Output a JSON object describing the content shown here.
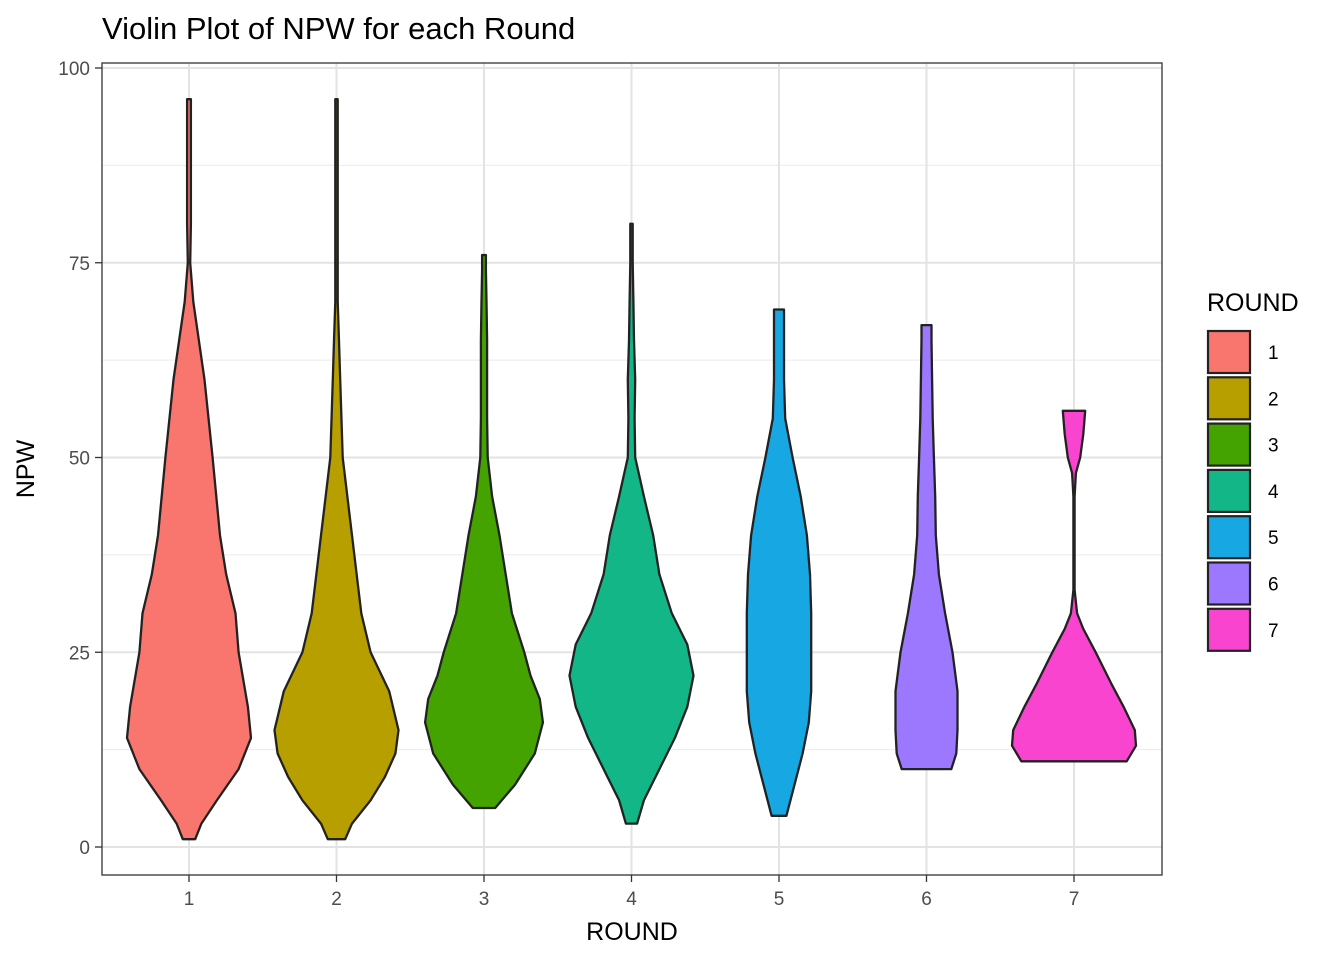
{
  "chart_data": {
    "type": "violin",
    "title": "Violin Plot of NPW for each Round",
    "xlabel": "ROUND",
    "ylabel": "NPW",
    "categories": [
      "1",
      "2",
      "3",
      "4",
      "5",
      "6",
      "7"
    ],
    "ylim": [
      0,
      100
    ],
    "yticks": [
      0,
      25,
      50,
      75,
      100
    ],
    "grid": true,
    "legend": {
      "title": "ROUND",
      "position": "right",
      "labels": [
        "1",
        "2",
        "3",
        "4",
        "5",
        "6",
        "7"
      ]
    },
    "series": [
      {
        "name": "1",
        "color": "#F8766D",
        "min": 1,
        "max": 96,
        "profile": [
          [
            1,
            0.1
          ],
          [
            3,
            0.2
          ],
          [
            6,
            0.45
          ],
          [
            10,
            0.8
          ],
          [
            14,
            1.0
          ],
          [
            18,
            0.95
          ],
          [
            25,
            0.8
          ],
          [
            30,
            0.75
          ],
          [
            35,
            0.6
          ],
          [
            40,
            0.5
          ],
          [
            50,
            0.38
          ],
          [
            60,
            0.25
          ],
          [
            70,
            0.07
          ],
          [
            75,
            0.02
          ],
          [
            80,
            0.03
          ],
          [
            85,
            0.03
          ],
          [
            96,
            0.03
          ]
        ]
      },
      {
        "name": "2",
        "color": "#B79F00",
        "min": 1,
        "max": 96,
        "profile": [
          [
            1,
            0.14
          ],
          [
            3,
            0.25
          ],
          [
            6,
            0.55
          ],
          [
            9,
            0.78
          ],
          [
            12,
            0.95
          ],
          [
            15,
            1.0
          ],
          [
            20,
            0.85
          ],
          [
            25,
            0.55
          ],
          [
            30,
            0.4
          ],
          [
            40,
            0.25
          ],
          [
            50,
            0.1
          ],
          [
            60,
            0.06
          ],
          [
            65,
            0.04
          ],
          [
            70,
            0.02
          ],
          [
            80,
            0.02
          ],
          [
            96,
            0.02
          ]
        ]
      },
      {
        "name": "3",
        "color": "#45A300",
        "min": 5,
        "max": 76,
        "profile": [
          [
            5,
            0.18
          ],
          [
            8,
            0.5
          ],
          [
            12,
            0.82
          ],
          [
            16,
            0.95
          ],
          [
            19,
            0.9
          ],
          [
            22,
            0.75
          ],
          [
            25,
            0.65
          ],
          [
            30,
            0.45
          ],
          [
            35,
            0.35
          ],
          [
            40,
            0.25
          ],
          [
            45,
            0.13
          ],
          [
            50,
            0.06
          ],
          [
            55,
            0.05
          ],
          [
            60,
            0.05
          ],
          [
            65,
            0.05
          ],
          [
            70,
            0.04
          ],
          [
            74,
            0.03
          ],
          [
            76,
            0.03
          ]
        ]
      },
      {
        "name": "4",
        "color": "#13B787",
        "min": 3,
        "max": 80,
        "profile": [
          [
            3,
            0.09
          ],
          [
            6,
            0.2
          ],
          [
            10,
            0.45
          ],
          [
            14,
            0.7
          ],
          [
            18,
            0.9
          ],
          [
            22,
            1.0
          ],
          [
            26,
            0.9
          ],
          [
            30,
            0.65
          ],
          [
            35,
            0.45
          ],
          [
            40,
            0.35
          ],
          [
            45,
            0.2
          ],
          [
            50,
            0.06
          ],
          [
            55,
            0.05
          ],
          [
            60,
            0.06
          ],
          [
            65,
            0.04
          ],
          [
            70,
            0.03
          ],
          [
            75,
            0.02
          ],
          [
            80,
            0.02
          ]
        ]
      },
      {
        "name": "5",
        "color": "#17A8E4",
        "min": 4,
        "max": 69,
        "profile": [
          [
            4,
            0.12
          ],
          [
            8,
            0.25
          ],
          [
            12,
            0.38
          ],
          [
            16,
            0.48
          ],
          [
            20,
            0.52
          ],
          [
            25,
            0.52
          ],
          [
            30,
            0.52
          ],
          [
            35,
            0.5
          ],
          [
            40,
            0.45
          ],
          [
            45,
            0.35
          ],
          [
            50,
            0.22
          ],
          [
            55,
            0.1
          ],
          [
            60,
            0.08
          ],
          [
            65,
            0.08
          ],
          [
            69,
            0.08
          ]
        ]
      },
      {
        "name": "6",
        "color": "#9B78FF",
        "min": 10,
        "max": 67,
        "profile": [
          [
            10,
            0.4
          ],
          [
            12,
            0.48
          ],
          [
            15,
            0.5
          ],
          [
            20,
            0.5
          ],
          [
            25,
            0.42
          ],
          [
            30,
            0.3
          ],
          [
            35,
            0.2
          ],
          [
            40,
            0.15
          ],
          [
            45,
            0.14
          ],
          [
            50,
            0.12
          ],
          [
            55,
            0.1
          ],
          [
            60,
            0.09
          ],
          [
            65,
            0.08
          ],
          [
            67,
            0.08
          ]
        ]
      },
      {
        "name": "7",
        "color": "#F844CF",
        "min": 11,
        "max": 56,
        "profile": [
          [
            11,
            0.85
          ],
          [
            13,
            1.0
          ],
          [
            15,
            0.98
          ],
          [
            18,
            0.8
          ],
          [
            21,
            0.6
          ],
          [
            25,
            0.35
          ],
          [
            28,
            0.15
          ],
          [
            30,
            0.05
          ],
          [
            33,
            0.01
          ],
          [
            45,
            0.01
          ],
          [
            48,
            0.03
          ],
          [
            50,
            0.1
          ],
          [
            53,
            0.15
          ],
          [
            56,
            0.18
          ]
        ]
      }
    ]
  }
}
